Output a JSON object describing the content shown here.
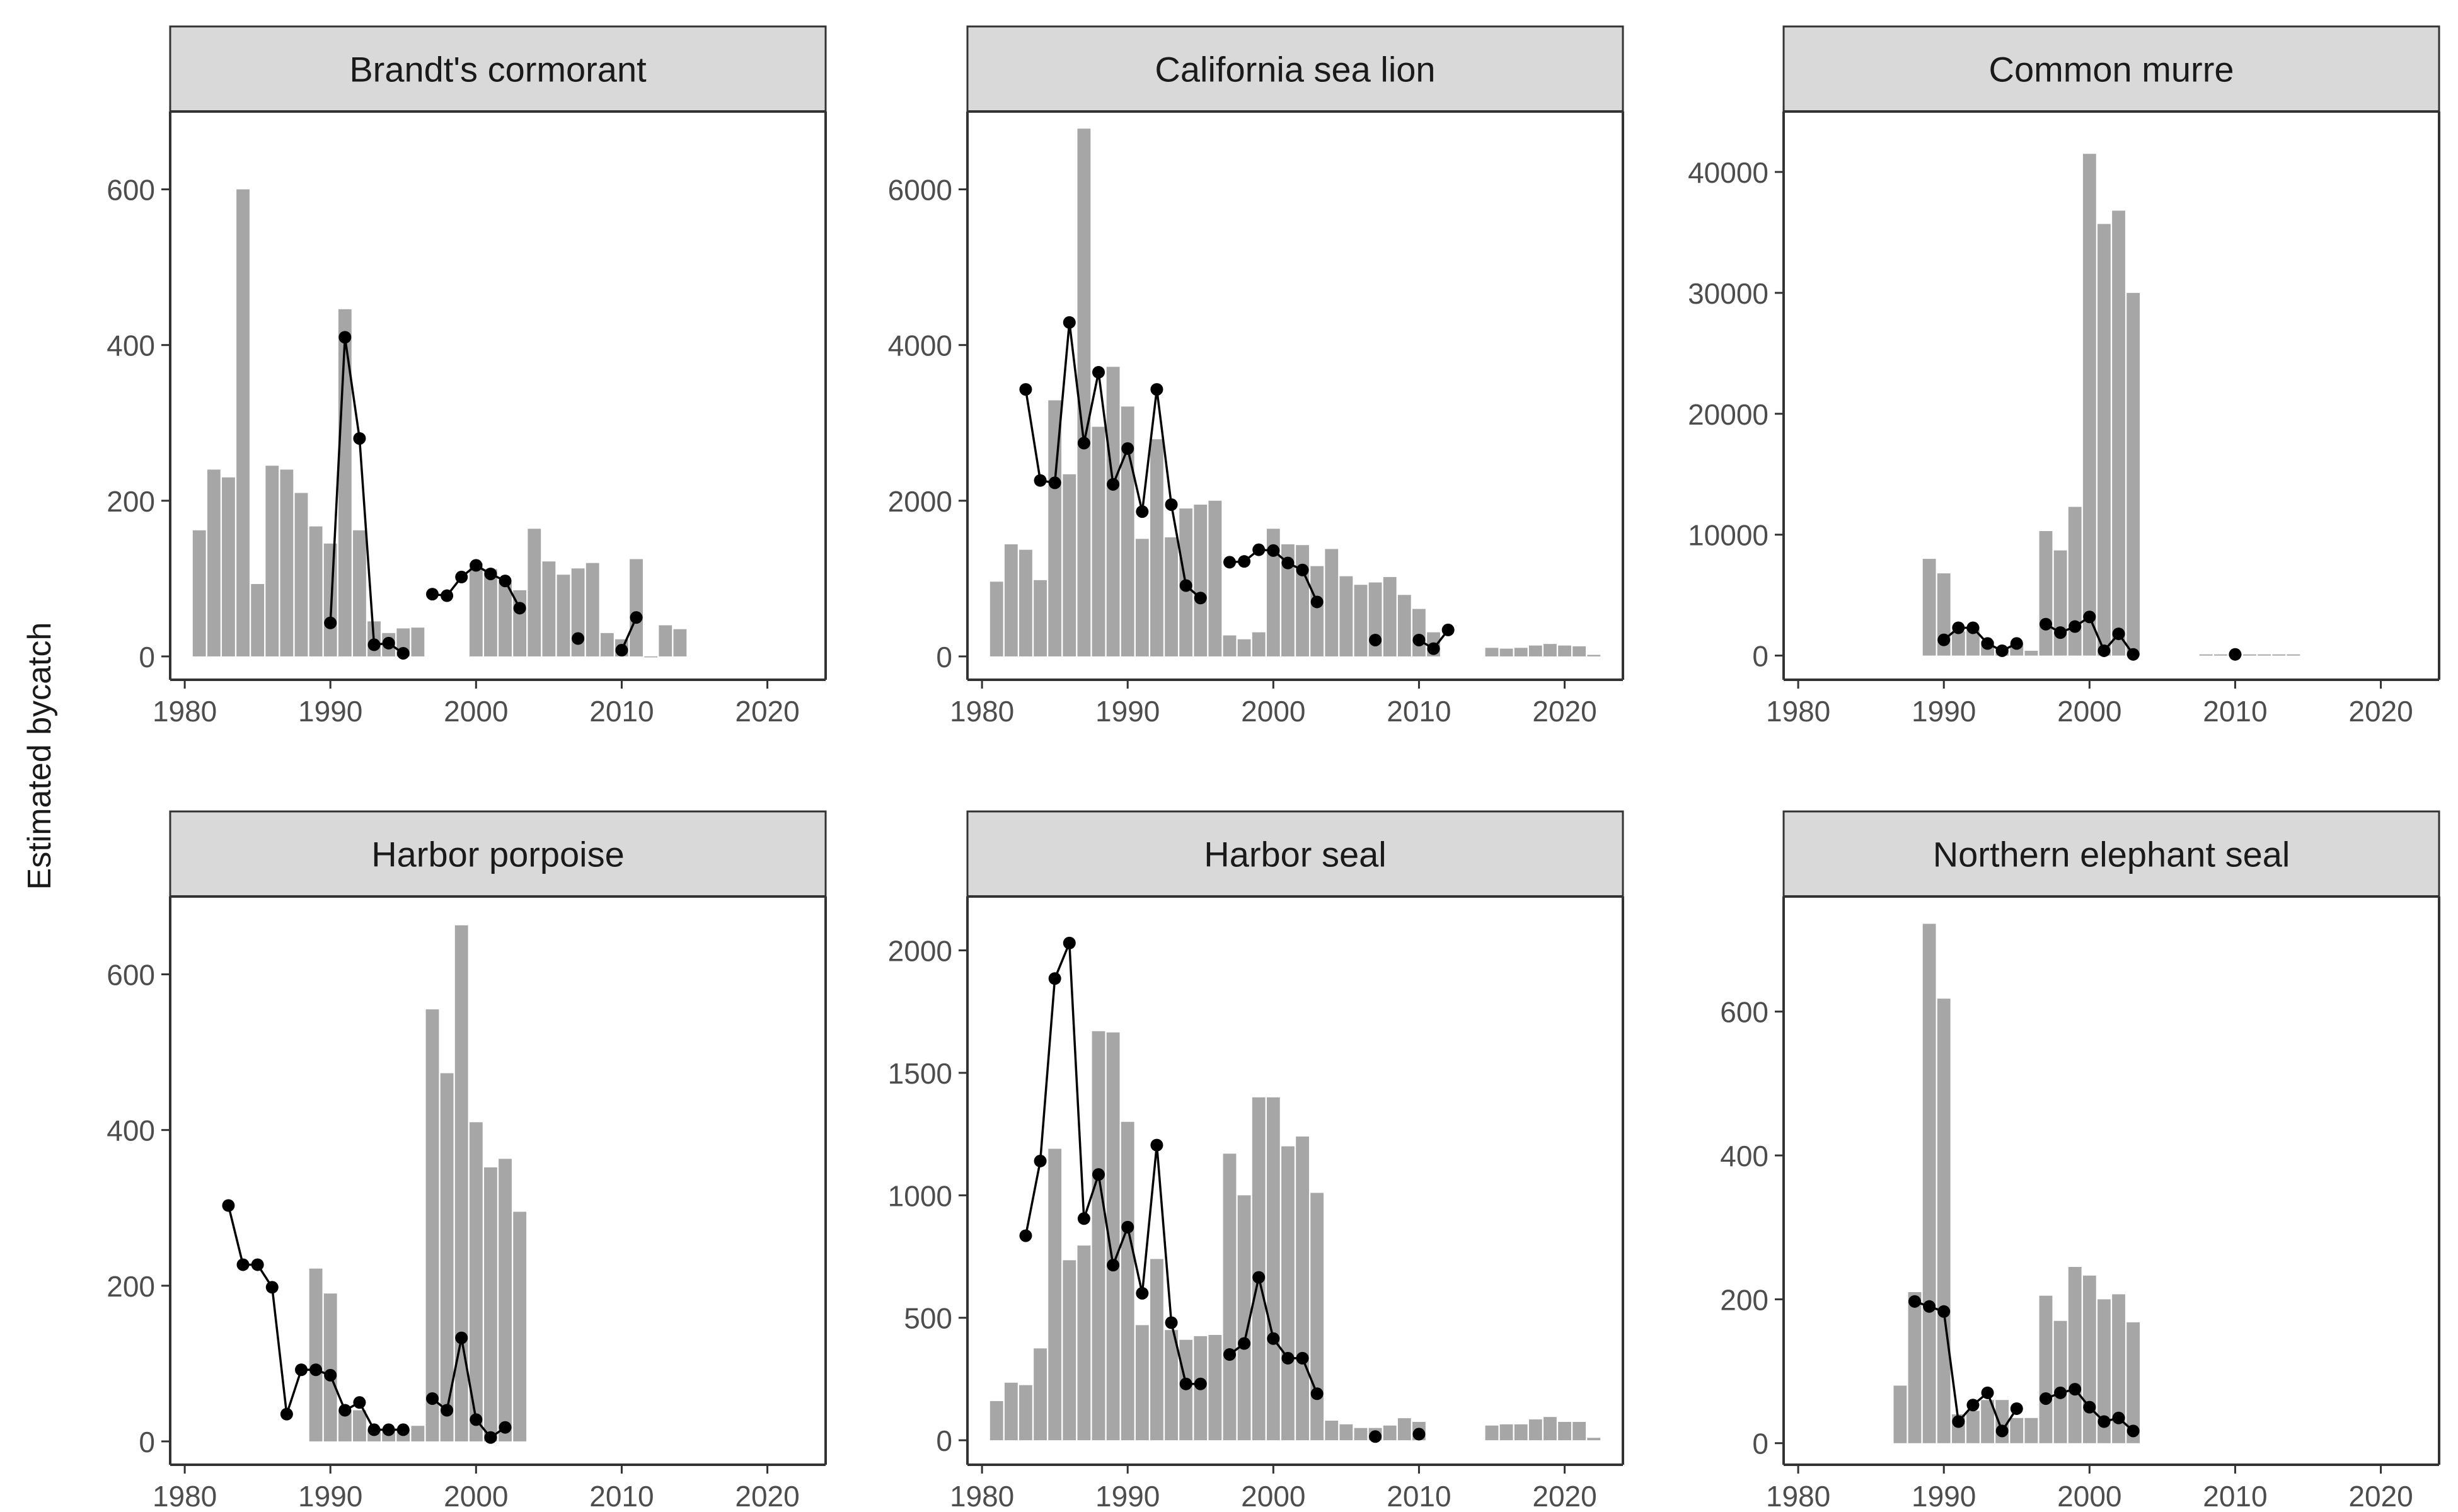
{
  "figure": {
    "ylabel": "Estimated bycatch",
    "x_ticks": [
      1980,
      1990,
      2000,
      2010,
      2020
    ],
    "xlim": [
      1979,
      2024
    ],
    "colors": {
      "bar": "#a6a6a6",
      "line": "#000000",
      "strip_fill": "#d9d9d9",
      "border": "#333333"
    }
  },
  "chart_data": [
    {
      "type": "bar",
      "title": "Brandt's cormorant",
      "ylim": [
        -30,
        700
      ],
      "y_ticks": [
        0,
        200,
        400,
        600
      ],
      "bars": [
        [
          1981,
          162
        ],
        [
          1982,
          240
        ],
        [
          1983,
          230
        ],
        [
          1984,
          600
        ],
        [
          1985,
          93
        ],
        [
          1986,
          245
        ],
        [
          1987,
          240
        ],
        [
          1988,
          210
        ],
        [
          1989,
          167
        ],
        [
          1990,
          145
        ],
        [
          1991,
          446
        ],
        [
          1992,
          162
        ],
        [
          1993,
          45
        ],
        [
          1994,
          30
        ],
        [
          1995,
          36
        ],
        [
          1996,
          37
        ],
        [
          2000,
          120
        ],
        [
          2001,
          112
        ],
        [
          2002,
          95
        ],
        [
          2003,
          85
        ],
        [
          2004,
          164
        ],
        [
          2005,
          122
        ],
        [
          2006,
          105
        ],
        [
          2007,
          113
        ],
        [
          2008,
          120
        ],
        [
          2009,
          30
        ],
        [
          2010,
          22
        ],
        [
          2011,
          125
        ],
        [
          2012,
          0
        ],
        [
          2013,
          40
        ],
        [
          2014,
          35
        ]
      ],
      "line": [
        [
          1990,
          43
        ],
        [
          1991,
          410
        ],
        [
          1992,
          280
        ],
        [
          1993,
          15
        ],
        [
          1994,
          17
        ],
        [
          1995,
          4
        ],
        [
          null,
          null
        ],
        [
          1997,
          80
        ],
        [
          1998,
          78
        ],
        [
          1999,
          102
        ],
        [
          2000,
          117
        ],
        [
          2001,
          106
        ],
        [
          2002,
          97
        ],
        [
          2003,
          62
        ],
        [
          null,
          null
        ],
        [
          2007,
          23
        ],
        [
          null,
          null
        ],
        [
          2010,
          8
        ],
        [
          2011,
          50
        ]
      ]
    },
    {
      "type": "bar",
      "title": "California sea lion",
      "ylim": [
        -300,
        7000
      ],
      "y_ticks": [
        0,
        2000,
        4000,
        6000
      ],
      "bars": [
        [
          1981,
          960
        ],
        [
          1982,
          1440
        ],
        [
          1983,
          1370
        ],
        [
          1984,
          980
        ],
        [
          1985,
          3290
        ],
        [
          1986,
          2340
        ],
        [
          1987,
          6780
        ],
        [
          1988,
          2950
        ],
        [
          1989,
          3720
        ],
        [
          1990,
          3210
        ],
        [
          1991,
          1510
        ],
        [
          1992,
          2790
        ],
        [
          1993,
          1530
        ],
        [
          1994,
          1900
        ],
        [
          1995,
          1950
        ],
        [
          1996,
          2000
        ],
        [
          1997,
          270
        ],
        [
          1998,
          220
        ],
        [
          1999,
          310
        ],
        [
          2000,
          1640
        ],
        [
          2001,
          1440
        ],
        [
          2002,
          1430
        ],
        [
          2003,
          1160
        ],
        [
          2004,
          1380
        ],
        [
          2005,
          1030
        ],
        [
          2006,
          920
        ],
        [
          2007,
          950
        ],
        [
          2008,
          1020
        ],
        [
          2009,
          790
        ],
        [
          2010,
          610
        ],
        [
          2011,
          310
        ],
        [
          2015,
          110
        ],
        [
          2016,
          100
        ],
        [
          2017,
          110
        ],
        [
          2018,
          140
        ],
        [
          2019,
          160
        ],
        [
          2020,
          140
        ],
        [
          2021,
          130
        ],
        [
          2022,
          20
        ]
      ],
      "line": [
        [
          1983,
          3430
        ],
        [
          1984,
          2260
        ],
        [
          1985,
          2230
        ],
        [
          1986,
          4290
        ],
        [
          1987,
          2740
        ],
        [
          1988,
          3650
        ],
        [
          1989,
          2210
        ],
        [
          1990,
          2670
        ],
        [
          1991,
          1860
        ],
        [
          1992,
          3430
        ],
        [
          1993,
          1950
        ],
        [
          1994,
          910
        ],
        [
          1995,
          750
        ],
        [
          null,
          null
        ],
        [
          1997,
          1210
        ],
        [
          1998,
          1220
        ],
        [
          1999,
          1370
        ],
        [
          2000,
          1360
        ],
        [
          2001,
          1200
        ],
        [
          2002,
          1110
        ],
        [
          2003,
          700
        ],
        [
          null,
          null
        ],
        [
          2007,
          210
        ],
        [
          null,
          null
        ],
        [
          2010,
          210
        ],
        [
          2011,
          100
        ],
        [
          2012,
          340
        ]
      ]
    },
    {
      "type": "bar",
      "title": "Common murre",
      "ylim": [
        -2000,
        45000
      ],
      "y_ticks": [
        0,
        10000,
        20000,
        30000,
        40000
      ],
      "bars": [
        [
          1989,
          8000
        ],
        [
          1990,
          6800
        ],
        [
          1991,
          2000
        ],
        [
          1992,
          2400
        ],
        [
          1993,
          1200
        ],
        [
          1994,
          600
        ],
        [
          1995,
          1000
        ],
        [
          1996,
          400
        ],
        [
          1997,
          10300
        ],
        [
          1998,
          8700
        ],
        [
          1999,
          12300
        ],
        [
          2000,
          41500
        ],
        [
          2001,
          35700
        ],
        [
          2002,
          36800
        ],
        [
          2003,
          30000
        ],
        [
          2008,
          100
        ],
        [
          2009,
          100
        ],
        [
          2010,
          100
        ],
        [
          2011,
          100
        ],
        [
          2012,
          100
        ],
        [
          2013,
          100
        ],
        [
          2014,
          100
        ]
      ],
      "line": [
        [
          1990,
          1300
        ],
        [
          1991,
          2300
        ],
        [
          1992,
          2300
        ],
        [
          1993,
          1000
        ],
        [
          1994,
          400
        ],
        [
          1995,
          1000
        ],
        [
          null,
          null
        ],
        [
          1997,
          2600
        ],
        [
          1998,
          1900
        ],
        [
          1999,
          2400
        ],
        [
          2000,
          3200
        ],
        [
          2001,
          400
        ],
        [
          2002,
          1800
        ],
        [
          2003,
          100
        ],
        [
          null,
          null
        ],
        [
          2010,
          100
        ]
      ]
    },
    {
      "type": "bar",
      "title": "Harbor porpoise",
      "ylim": [
        -30,
        700
      ],
      "y_ticks": [
        0,
        200,
        400,
        600
      ],
      "bars": [
        [
          1989,
          222
        ],
        [
          1990,
          190
        ],
        [
          1991,
          40
        ],
        [
          1992,
          40
        ],
        [
          1993,
          15
        ],
        [
          1994,
          15
        ],
        [
          1995,
          15
        ],
        [
          1996,
          20
        ],
        [
          1997,
          555
        ],
        [
          1998,
          473
        ],
        [
          1999,
          663
        ],
        [
          2000,
          410
        ],
        [
          2001,
          352
        ],
        [
          2002,
          363
        ],
        [
          2003,
          295
        ]
      ],
      "line": [
        [
          1983,
          303
        ],
        [
          1984,
          227
        ],
        [
          1985,
          227
        ],
        [
          1986,
          198
        ],
        [
          1987,
          35
        ],
        [
          1988,
          92
        ],
        [
          1989,
          92
        ],
        [
          1990,
          85
        ],
        [
          1991,
          40
        ],
        [
          1992,
          50
        ],
        [
          1993,
          15
        ],
        [
          1994,
          15
        ],
        [
          1995,
          15
        ],
        [
          null,
          null
        ],
        [
          1997,
          55
        ],
        [
          1998,
          40
        ],
        [
          1999,
          133
        ],
        [
          2000,
          28
        ],
        [
          2001,
          5
        ],
        [
          2002,
          18
        ]
      ]
    },
    {
      "type": "bar",
      "title": "Harbor seal",
      "ylim": [
        -100,
        2220
      ],
      "y_ticks": [
        0,
        500,
        1000,
        1500,
        2000
      ],
      "bars": [
        [
          1981,
          160
        ],
        [
          1982,
          235
        ],
        [
          1983,
          225
        ],
        [
          1984,
          375
        ],
        [
          1985,
          1190
        ],
        [
          1986,
          735
        ],
        [
          1987,
          795
        ],
        [
          1988,
          1670
        ],
        [
          1989,
          1665
        ],
        [
          1990,
          1300
        ],
        [
          1991,
          470
        ],
        [
          1992,
          740
        ],
        [
          1993,
          450
        ],
        [
          1994,
          410
        ],
        [
          1995,
          425
        ],
        [
          1996,
          430
        ],
        [
          1997,
          1170
        ],
        [
          1998,
          1000
        ],
        [
          1999,
          1400
        ],
        [
          2000,
          1400
        ],
        [
          2001,
          1200
        ],
        [
          2002,
          1240
        ],
        [
          2003,
          1010
        ],
        [
          2004,
          80
        ],
        [
          2005,
          65
        ],
        [
          2006,
          50
        ],
        [
          2007,
          50
        ],
        [
          2008,
          60
        ],
        [
          2009,
          90
        ],
        [
          2010,
          75
        ],
        [
          2015,
          60
        ],
        [
          2016,
          65
        ],
        [
          2017,
          65
        ],
        [
          2018,
          85
        ],
        [
          2019,
          95
        ],
        [
          2020,
          75
        ],
        [
          2021,
          75
        ],
        [
          2022,
          10
        ]
      ],
      "line": [
        [
          1983,
          835
        ],
        [
          1984,
          1140
        ],
        [
          1985,
          1885
        ],
        [
          1986,
          2030
        ],
        [
          1987,
          905
        ],
        [
          1988,
          1085
        ],
        [
          1989,
          715
        ],
        [
          1990,
          870
        ],
        [
          1991,
          600
        ],
        [
          1992,
          1205
        ],
        [
          1993,
          480
        ],
        [
          1994,
          230
        ],
        [
          1995,
          230
        ],
        [
          null,
          null
        ],
        [
          1997,
          350
        ],
        [
          1998,
          395
        ],
        [
          1999,
          665
        ],
        [
          2000,
          415
        ],
        [
          2001,
          335
        ],
        [
          2002,
          335
        ],
        [
          2003,
          190
        ],
        [
          null,
          null
        ],
        [
          2007,
          15
        ],
        [
          null,
          null
        ],
        [
          2010,
          25
        ]
      ]
    },
    {
      "type": "bar",
      "title": "Northern elephant seal",
      "ylim": [
        -30,
        760
      ],
      "y_ticks": [
        0,
        200,
        400,
        600
      ],
      "bars": [
        [
          1987,
          80
        ],
        [
          1988,
          210
        ],
        [
          1989,
          722
        ],
        [
          1990,
          618
        ],
        [
          1991,
          40
        ],
        [
          1992,
          45
        ],
        [
          1993,
          60
        ],
        [
          1994,
          60
        ],
        [
          1995,
          35
        ],
        [
          1996,
          35
        ],
        [
          1997,
          205
        ],
        [
          1998,
          170
        ],
        [
          1999,
          245
        ],
        [
          2000,
          233
        ],
        [
          2001,
          200
        ],
        [
          2002,
          207
        ],
        [
          2003,
          168
        ]
      ],
      "line": [
        [
          1988,
          197
        ],
        [
          1989,
          190
        ],
        [
          1990,
          183
        ],
        [
          1991,
          30
        ],
        [
          1992,
          53
        ],
        [
          1993,
          70
        ],
        [
          1994,
          17
        ],
        [
          1995,
          48
        ],
        [
          null,
          null
        ],
        [
          1997,
          62
        ],
        [
          1998,
          70
        ],
        [
          1999,
          75
        ],
        [
          2000,
          50
        ],
        [
          2001,
          30
        ],
        [
          2002,
          35
        ],
        [
          2003,
          17
        ]
      ]
    }
  ]
}
